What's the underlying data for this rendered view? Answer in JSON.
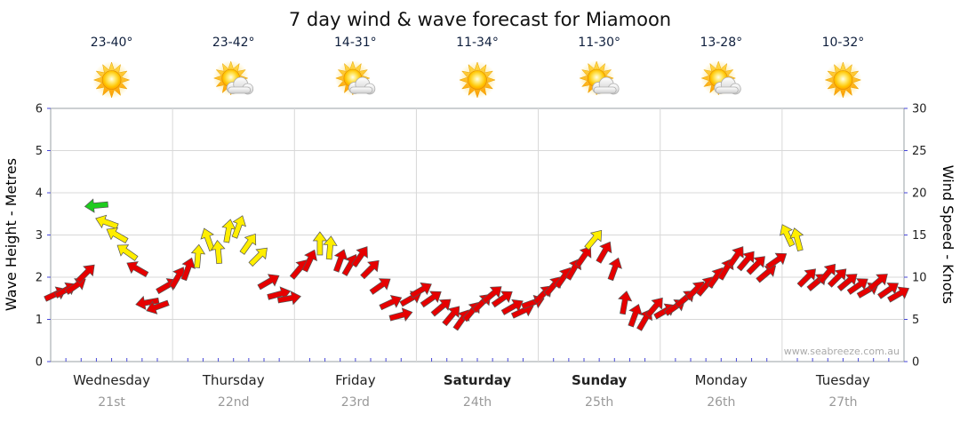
{
  "chart_data": {
    "type": "wind-arrows",
    "title": "7 day wind & wave forecast for Miamoon",
    "watermark": "www.seabreeze.com.au",
    "left_axis": {
      "label": "Wave Height - Metres",
      "ticks": [
        0,
        1,
        2,
        3,
        4,
        5,
        6
      ],
      "range": [
        0,
        6
      ]
    },
    "right_axis": {
      "label": "Wind Speed - Knots",
      "ticks": [
        0,
        5,
        10,
        15,
        20,
        25,
        30
      ],
      "range": [
        0,
        30
      ]
    },
    "speed_colors": {
      "r": "#e60000",
      "y": "#ffee00",
      "g": "#1ecc1e"
    },
    "grid": "on",
    "time_step_hours": 2,
    "days": [
      {
        "name": "Wednesday",
        "date": "21st",
        "temp": "23-40°",
        "icon": "sunny",
        "weekend": false,
        "wind": [
          [
            8,
            25,
            "r"
          ],
          [
            8.5,
            30,
            "r"
          ],
          [
            9,
            35,
            "r"
          ],
          [
            10.5,
            45,
            "r"
          ],
          [
            18.5,
            185,
            "g"
          ],
          [
            16.5,
            160,
            "y"
          ],
          [
            15,
            150,
            "y"
          ],
          [
            13,
            145,
            "y"
          ],
          [
            11,
            150,
            "r"
          ],
          [
            7,
            190,
            "r"
          ],
          [
            6.5,
            200,
            "r"
          ],
          [
            9,
            30,
            "r"
          ]
        ]
      },
      {
        "name": "Thursday",
        "date": "22nd",
        "temp": "23-42°",
        "icon": "partly-cloudy",
        "weekend": false,
        "wind": [
          [
            10,
            60,
            "r"
          ],
          [
            11,
            70,
            "r"
          ],
          [
            12.5,
            85,
            "y"
          ],
          [
            14.5,
            110,
            "y"
          ],
          [
            13,
            95,
            "y"
          ],
          [
            15.5,
            80,
            "y"
          ],
          [
            16,
            70,
            "y"
          ],
          [
            14,
            55,
            "y"
          ],
          [
            12.5,
            45,
            "y"
          ],
          [
            9.5,
            30,
            "r"
          ],
          [
            8,
            15,
            "r"
          ],
          [
            7.5,
            10,
            "r"
          ]
        ]
      },
      {
        "name": "Friday",
        "date": "23rd",
        "temp": "14-31°",
        "icon": "partly-cloudy",
        "weekend": false,
        "wind": [
          [
            11,
            50,
            "r"
          ],
          [
            12,
            65,
            "r"
          ],
          [
            14,
            90,
            "y"
          ],
          [
            13.5,
            85,
            "y"
          ],
          [
            12,
            70,
            "r"
          ],
          [
            11.5,
            60,
            "r"
          ],
          [
            12.5,
            55,
            "r"
          ],
          [
            11,
            45,
            "r"
          ],
          [
            9,
            35,
            "r"
          ],
          [
            7,
            25,
            "r"
          ],
          [
            5.5,
            15,
            "r"
          ],
          [
            7.5,
            30,
            "r"
          ]
        ]
      },
      {
        "name": "Saturday",
        "date": "24th",
        "temp": "11-34°",
        "icon": "sunny",
        "weekend": true,
        "wind": [
          [
            8.5,
            30,
            "r"
          ],
          [
            7.5,
            35,
            "r"
          ],
          [
            6.5,
            40,
            "r"
          ],
          [
            5.5,
            50,
            "r"
          ],
          [
            5,
            55,
            "r"
          ],
          [
            6,
            50,
            "r"
          ],
          [
            7,
            45,
            "r"
          ],
          [
            8,
            40,
            "r"
          ],
          [
            7.5,
            35,
            "r"
          ],
          [
            6.5,
            30,
            "r"
          ],
          [
            6,
            25,
            "r"
          ],
          [
            7,
            20,
            "r"
          ]
        ]
      },
      {
        "name": "Sunday",
        "date": "25th",
        "temp": "11-30°",
        "icon": "partly-cloudy",
        "weekend": true,
        "wind": [
          [
            8,
            45,
            "r"
          ],
          [
            9,
            50,
            "r"
          ],
          [
            10,
            55,
            "r"
          ],
          [
            11,
            60,
            "r"
          ],
          [
            12.5,
            55,
            "r"
          ],
          [
            14.5,
            50,
            "y"
          ],
          [
            13,
            60,
            "r"
          ],
          [
            11,
            70,
            "r"
          ],
          [
            7,
            80,
            "r"
          ],
          [
            5.5,
            70,
            "r"
          ],
          [
            5,
            60,
            "r"
          ],
          [
            6.5,
            50,
            "r"
          ]
        ]
      },
      {
        "name": "Monday",
        "date": "26th",
        "temp": "13-28°",
        "icon": "partly-cloudy",
        "weekend": false,
        "wind": [
          [
            6,
            30,
            "r"
          ],
          [
            6.5,
            35,
            "r"
          ],
          [
            7.5,
            40,
            "r"
          ],
          [
            8.5,
            45,
            "r"
          ],
          [
            9,
            50,
            "r"
          ],
          [
            10,
            55,
            "r"
          ],
          [
            11,
            60,
            "r"
          ],
          [
            12.5,
            55,
            "r"
          ],
          [
            12,
            50,
            "r"
          ],
          [
            11.5,
            45,
            "r"
          ],
          [
            10.5,
            40,
            "r"
          ],
          [
            12,
            35,
            "r"
          ]
        ]
      },
      {
        "name": "Tuesday",
        "date": "27th",
        "temp": "10-32°",
        "icon": "sunny",
        "weekend": false,
        "wind": [
          [
            15,
            115,
            "y"
          ],
          [
            14.5,
            105,
            "y"
          ],
          [
            10,
            45,
            "r"
          ],
          [
            9.5,
            40,
            "r"
          ],
          [
            10.5,
            50,
            "r"
          ],
          [
            10,
            45,
            "r"
          ],
          [
            9.5,
            40,
            "r"
          ],
          [
            9,
            35,
            "r"
          ],
          [
            8.5,
            30,
            "r"
          ],
          [
            9.5,
            40,
            "r"
          ],
          [
            8.5,
            35,
            "r"
          ],
          [
            8,
            30,
            "r"
          ]
        ]
      }
    ]
  }
}
